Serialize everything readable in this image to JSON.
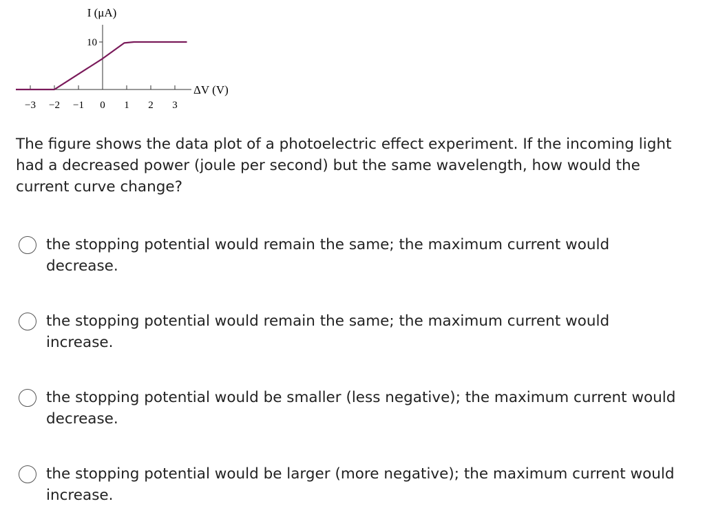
{
  "chart_data": {
    "type": "line",
    "xlabel": "ΔV (V)",
    "ylabel": "I (μA)",
    "x_ticks": [
      -3,
      -2,
      -1,
      0,
      1,
      2,
      3
    ],
    "y_ticks": [
      10
    ],
    "xlim": [
      -3.6,
      3.6
    ],
    "ylim": [
      0,
      13
    ],
    "grid": false,
    "color": "#7a1a5a",
    "series": [
      {
        "x": [
          -3.6,
          -2,
          0,
          0.9,
          1.3,
          3.5
        ],
        "y": [
          0,
          0,
          6.5,
          9.8,
          10,
          10
        ]
      }
    ]
  },
  "question": "The figure shows the data plot of a photoelectric effect experiment. If the incoming light had a decreased power (joule per second) but the same wavelength, how would the current curve change?",
  "options": [
    {
      "label": "the stopping potential would remain the same; the maximum current would decrease.",
      "selected": false
    },
    {
      "label": "the stopping potential would remain the same; the maximum current would increase.",
      "selected": false
    },
    {
      "label": "the stopping potential would be smaller (less negative); the maximum current would decrease.",
      "selected": false
    },
    {
      "label": "the stopping potential would be larger (more negative); the maximum current would increase.",
      "selected": false
    }
  ]
}
